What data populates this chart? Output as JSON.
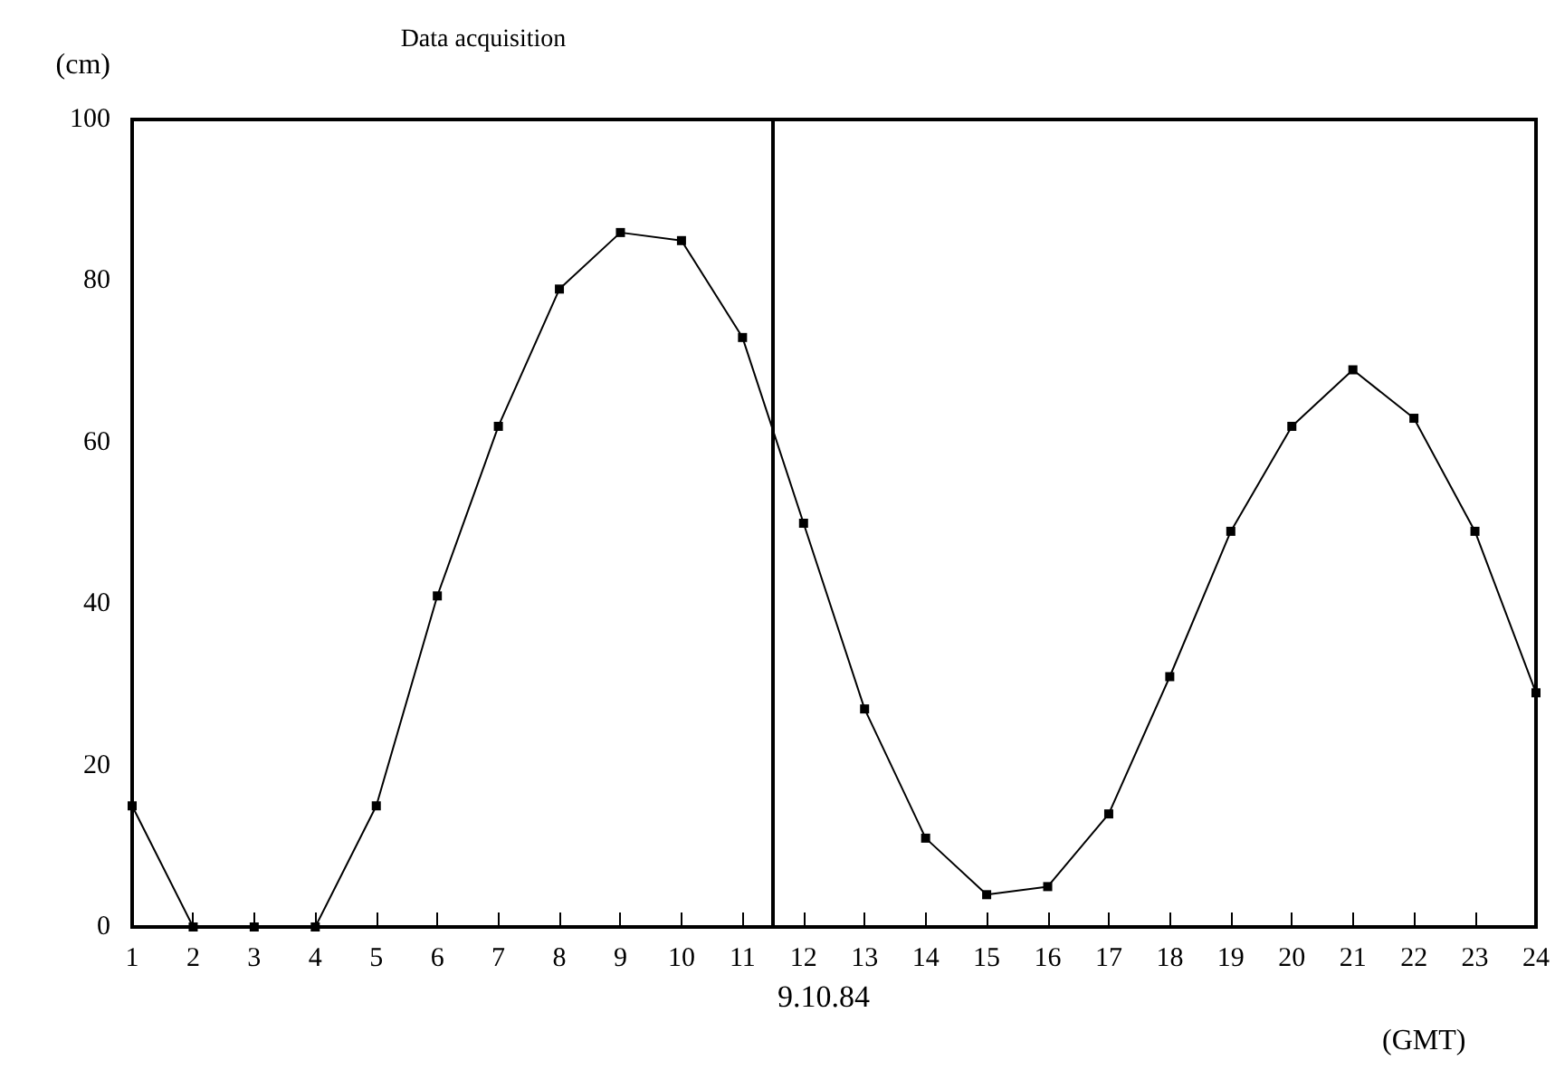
{
  "chart_data": {
    "type": "line",
    "title": "Data acquisition",
    "ylabel": "(cm)",
    "xlabel": "(GMT)",
    "x": [
      1,
      2,
      3,
      4,
      5,
      6,
      7,
      8,
      9,
      10,
      11,
      12,
      13,
      14,
      15,
      16,
      17,
      18,
      19,
      20,
      21,
      22,
      23,
      24
    ],
    "series": [
      {
        "color": "#000000",
        "values": [
          15,
          0,
          0,
          0,
          15,
          41,
          62,
          79,
          86,
          85,
          73,
          50,
          27,
          11,
          4,
          5,
          14,
          31,
          49,
          62,
          69,
          63,
          49,
          29
        ]
      }
    ],
    "xlim": [
      1,
      24
    ],
    "xticks": [
      1,
      2,
      3,
      4,
      5,
      6,
      7,
      8,
      9,
      10,
      11,
      12,
      13,
      14,
      15,
      16,
      17,
      18,
      19,
      20,
      21,
      22,
      23,
      24
    ],
    "ylim": [
      0,
      100
    ],
    "yticks": [
      0,
      20,
      40,
      60,
      80,
      100
    ],
    "ref_lines": [
      {
        "axis": "x",
        "value": 11.5,
        "label": "9.10.84",
        "color": "#000000"
      }
    ],
    "marker": "square",
    "line_style": "solid"
  }
}
